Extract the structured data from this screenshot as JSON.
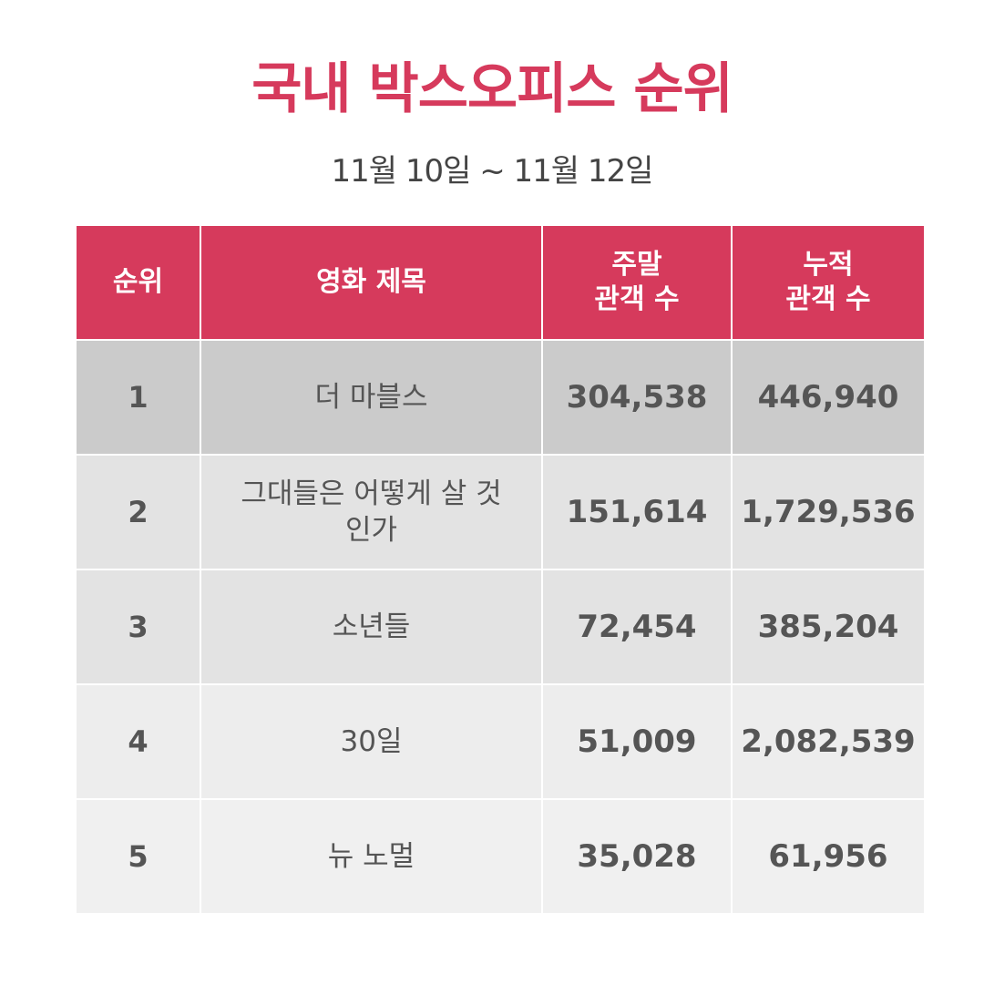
{
  "title": "국내 박스오피스 순위",
  "subtitle": "11월 10일 ~ 11월 12일",
  "colors": {
    "accent": "#d63a5c",
    "text": "#555555"
  },
  "table": {
    "headers": {
      "rank": "순위",
      "movie_title": "영화 제목",
      "weekend_line1": "주말",
      "weekend_line2": "관객 수",
      "total_line1": "누적",
      "total_line2": "관객 수"
    },
    "rows": [
      {
        "rank": "1",
        "movie": "더 마블스",
        "weekend": "304,538",
        "total": "446,940"
      },
      {
        "rank": "2",
        "movie": "그대들은 어떻게 살 것인가",
        "weekend": "151,614",
        "total": "1,729,536"
      },
      {
        "rank": "3",
        "movie": "소년들",
        "weekend": "72,454",
        "total": "385,204"
      },
      {
        "rank": "4",
        "movie": "30일",
        "weekend": "51,009",
        "total": "2,082,539"
      },
      {
        "rank": "5",
        "movie": "뉴 노멀",
        "weekend": "35,028",
        "total": "61,956"
      }
    ]
  }
}
